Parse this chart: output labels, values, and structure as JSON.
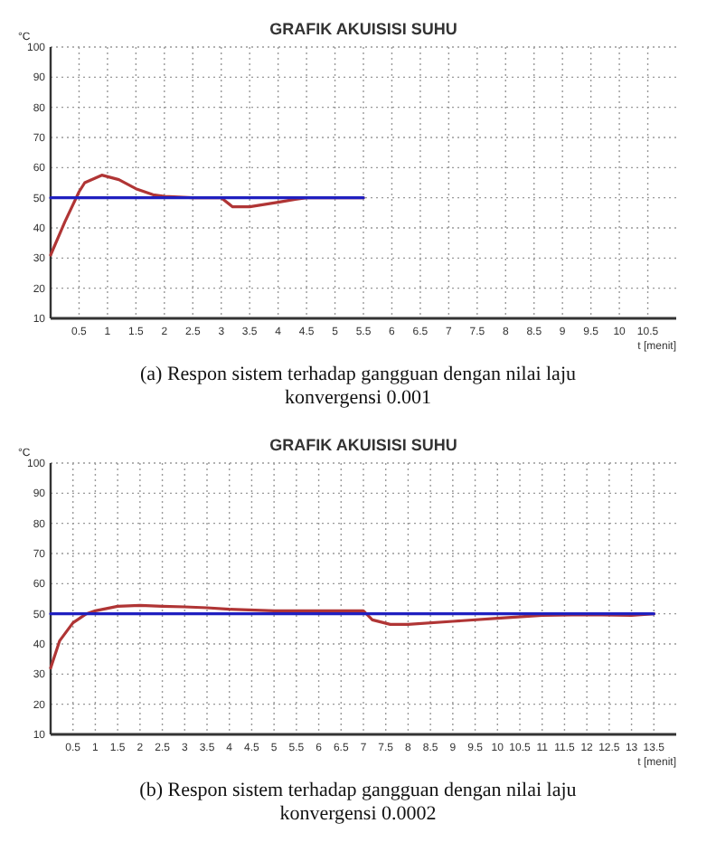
{
  "chart_data": [
    {
      "type": "line",
      "title": "GRAFIK AKUISISI SUHU",
      "xlabel": "t [menit]",
      "ylabel": "°C",
      "xlim": [
        0,
        11
      ],
      "xticks": [
        0.5,
        1,
        1.5,
        2,
        2.5,
        3,
        3.5,
        4,
        4.5,
        5,
        5.5,
        6,
        6.5,
        7,
        7.5,
        8,
        8.5,
        9,
        9.5,
        10,
        10.5
      ],
      "ylim": [
        10,
        100
      ],
      "yticks": [
        10,
        20,
        30,
        40,
        50,
        60,
        70,
        80,
        90,
        100
      ],
      "grid": true,
      "line_style": "solid",
      "annotations": [
        "(a)  Respon sistem terhadap gangguan dengan nilai laju konvergensi 0.001"
      ],
      "series": [
        {
          "color": "#b03535",
          "x": [
            0,
            0.25,
            0.5,
            0.6,
            0.9,
            1.2,
            1.5,
            1.8,
            2,
            2.5,
            3,
            3.2,
            3.5,
            4,
            4.3,
            4.5,
            5.5
          ],
          "values": [
            31,
            42,
            52,
            55,
            57.5,
            56,
            53,
            51,
            50.5,
            50,
            50,
            47,
            47,
            48.5,
            49.5,
            50,
            50
          ]
        },
        {
          "color": "#2020c0",
          "x": [
            0,
            5.5
          ],
          "values": [
            50,
            50
          ]
        }
      ]
    },
    {
      "type": "line",
      "title": "GRAFIK AKUISISI SUHU",
      "xlabel": "t [menit]",
      "ylabel": "°C",
      "xlim": [
        0,
        14
      ],
      "xticks": [
        0.5,
        1,
        1.5,
        2,
        2.5,
        3,
        3.5,
        4,
        4.5,
        5,
        5.5,
        6,
        6.5,
        7,
        7.5,
        8,
        8.5,
        9,
        9.5,
        10,
        10.5,
        11,
        11.5,
        12,
        12.5,
        13,
        13.5
      ],
      "ylim": [
        10,
        100
      ],
      "yticks": [
        10,
        20,
        30,
        40,
        50,
        60,
        70,
        80,
        90,
        100
      ],
      "grid": true,
      "line_style": "solid",
      "annotations": [
        "(b)  Respon sistem terhadap gangguan dengan nilai laju konvergensi 0.0002"
      ],
      "series": [
        {
          "color": "#b03535",
          "x": [
            0,
            0.2,
            0.5,
            0.8,
            1,
            1.5,
            2,
            2.5,
            3,
            3.5,
            4,
            5,
            6,
            7,
            7.2,
            7.6,
            8,
            9,
            10,
            11,
            12,
            13,
            13.5
          ],
          "values": [
            32,
            41,
            47,
            50,
            51,
            52.5,
            52.8,
            52.5,
            52.3,
            52,
            51.5,
            51,
            51,
            51,
            48,
            46.5,
            46.5,
            47.5,
            48.5,
            49.5,
            49.7,
            49.5,
            50
          ]
        },
        {
          "color": "#2020c0",
          "x": [
            0,
            13.5
          ],
          "values": [
            50,
            50
          ]
        }
      ]
    }
  ]
}
